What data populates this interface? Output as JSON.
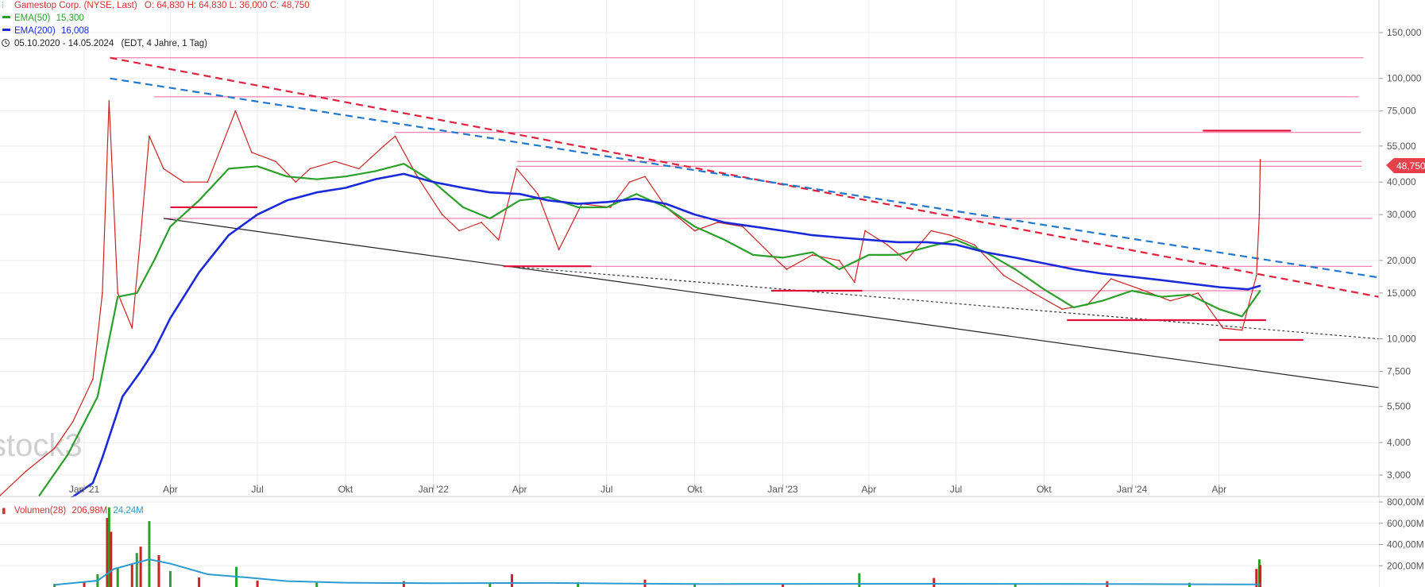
{
  "header": {
    "instrument": "Gamestop Corp. (NYSE, Last)",
    "ohlc": "O: 64,830  H: 64,830  L: 36,000  C: 48,750",
    "ema50_label": "EMA(50)",
    "ema50_value": "15,300",
    "ema200_label": "EMA(200)",
    "ema200_value": "16,008",
    "range": "05.10.2020 - 14.05.2024",
    "range_detail": "(EDT, 4 Jahre, 1 Tag)"
  },
  "watermark": "stock3",
  "last_price_tag": "48,750",
  "volume_panel": {
    "label": "Volumen(28)",
    "value1": "206,98M",
    "value2": "24,24M",
    "axis_labels": [
      "800,00M",
      "600,00M",
      "400,00M",
      "200,00M"
    ]
  },
  "colors": {
    "price": "#cc2222",
    "ema50": "#2aa02a",
    "ema200": "#1a2ad8",
    "resistance": "#e8337a",
    "trend_red": "#e0203c",
    "trend_blue": "#2277cc",
    "volume_up": "#2aa02a",
    "volume_down": "#cc2222",
    "volume_avg": "#2b9bd0"
  },
  "chart_data": {
    "type": "line",
    "scale": "log",
    "ylim": [
      2.5,
      200
    ],
    "xlim": [
      "2020-10-05",
      "2024-09-15"
    ],
    "y_ticks": [
      3,
      4,
      5.5,
      7.5,
      10,
      15,
      20,
      30,
      40,
      55,
      75,
      100,
      150
    ],
    "y_tick_labels": [
      "3,000",
      "4,000",
      "5,500",
      "7,500",
      "10,000",
      "15,000",
      "20,000",
      "30,000",
      "40,000",
      "55,000",
      "75,000",
      "100,000",
      "150,000"
    ],
    "x_ticks": [
      "2021-01-01",
      "2021-04-01",
      "2021-07-01",
      "2021-10-01",
      "2022-01-01",
      "2022-04-01",
      "2022-07-01",
      "2022-10-01",
      "2023-01-01",
      "2023-04-01",
      "2023-07-01",
      "2023-10-01",
      "2024-01-01",
      "2024-04-01"
    ],
    "x_tick_labels": [
      "Jan '21",
      "Apr",
      "Jul",
      "Okt",
      "Jan '22",
      "Apr",
      "Jul",
      "Okt",
      "Jan '23",
      "Apr",
      "Jul",
      "Okt",
      "Jan '24",
      "Apr"
    ],
    "series": [
      {
        "name": "Gamestop Corp.",
        "x": [
          "2020-10-05",
          "2020-11-01",
          "2020-12-01",
          "2020-12-20",
          "2021-01-10",
          "2021-01-20",
          "2021-01-27",
          "2021-02-05",
          "2021-02-20",
          "2021-03-01",
          "2021-03-10",
          "2021-03-25",
          "2021-04-15",
          "2021-05-10",
          "2021-06-08",
          "2021-06-25",
          "2021-07-20",
          "2021-08-10",
          "2021-08-25",
          "2021-09-20",
          "2021-10-15",
          "2021-11-10",
          "2021-11-22",
          "2021-12-15",
          "2022-01-10",
          "2022-01-28",
          "2022-02-20",
          "2022-03-10",
          "2022-03-29",
          "2022-04-20",
          "2022-05-12",
          "2022-06-05",
          "2022-07-05",
          "2022-07-25",
          "2022-08-10",
          "2022-09-01",
          "2022-10-01",
          "2022-10-25",
          "2022-11-20",
          "2022-12-20",
          "2023-01-05",
          "2023-02-01",
          "2023-03-01",
          "2023-03-17",
          "2023-03-28",
          "2023-04-20",
          "2023-05-10",
          "2023-06-05",
          "2023-06-25",
          "2023-07-20",
          "2023-08-20",
          "2023-09-20",
          "2023-10-20",
          "2023-11-15",
          "2023-12-10",
          "2024-01-10",
          "2024-02-10",
          "2024-03-10",
          "2024-04-05",
          "2024-04-25",
          "2024-05-10",
          "2024-05-13",
          "2024-05-14"
        ],
        "y": [
          2.5,
          3.1,
          3.8,
          4.8,
          7.0,
          15.0,
          82.0,
          15.0,
          11.0,
          25.0,
          60.0,
          45.0,
          40.0,
          40.0,
          75.0,
          52.0,
          48.0,
          40.0,
          45.0,
          48.0,
          45.0,
          55.0,
          60.0,
          42.0,
          30.0,
          26.0,
          28.0,
          24.0,
          45.0,
          36.0,
          22.0,
          33.0,
          32.0,
          40.0,
          42.0,
          32.0,
          26.0,
          28.0,
          27.0,
          21.0,
          18.5,
          21.0,
          20.0,
          16.5,
          26.0,
          23.0,
          20.0,
          26.0,
          25.0,
          23.0,
          17.5,
          15.0,
          13.0,
          13.5,
          17.0,
          15.5,
          14.0,
          15.0,
          11.0,
          10.8,
          17.5,
          30.0,
          48.75
        ]
      },
      {
        "name": "EMA(50)",
        "x": [
          "2020-11-15",
          "2020-12-15",
          "2021-01-15",
          "2021-02-05",
          "2021-02-25",
          "2021-03-15",
          "2021-04-01",
          "2021-05-01",
          "2021-06-01",
          "2021-07-01",
          "2021-08-01",
          "2021-09-01",
          "2021-10-01",
          "2021-11-01",
          "2021-12-01",
          "2022-01-01",
          "2022-02-01",
          "2022-03-01",
          "2022-04-01",
          "2022-05-01",
          "2022-06-01",
          "2022-07-01",
          "2022-08-01",
          "2022-09-01",
          "2022-10-01",
          "2022-11-01",
          "2022-12-01",
          "2023-01-01",
          "2023-02-01",
          "2023-03-01",
          "2023-04-01",
          "2023-05-01",
          "2023-06-01",
          "2023-07-01",
          "2023-08-01",
          "2023-09-01",
          "2023-10-01",
          "2023-11-01",
          "2023-12-01",
          "2024-01-01",
          "2024-02-01",
          "2024-03-01",
          "2024-04-01",
          "2024-04-25",
          "2024-05-14"
        ],
        "y": [
          2.5,
          3.6,
          6.0,
          14.5,
          15.0,
          20.0,
          27.0,
          34.0,
          45.0,
          46.0,
          42.0,
          41.0,
          42.0,
          44.0,
          47.0,
          40.0,
          32.0,
          29.0,
          34.0,
          35.0,
          32.0,
          32.0,
          36.0,
          32.0,
          27.0,
          24.0,
          21.0,
          20.5,
          21.5,
          18.5,
          21.0,
          21.0,
          22.5,
          24.0,
          21.5,
          18.5,
          15.5,
          13.2,
          14.0,
          15.3,
          14.5,
          14.8,
          13.0,
          12.2,
          15.3
        ]
      },
      {
        "name": "EMA(200)",
        "x": [
          "2020-12-15",
          "2021-01-10",
          "2021-01-20",
          "2021-02-10",
          "2021-03-01",
          "2021-03-15",
          "2021-04-01",
          "2021-05-01",
          "2021-06-01",
          "2021-07-01",
          "2021-08-01",
          "2021-09-01",
          "2021-10-01",
          "2021-11-01",
          "2021-12-01",
          "2022-01-01",
          "2022-02-01",
          "2022-03-01",
          "2022-04-01",
          "2022-05-01",
          "2022-06-01",
          "2022-07-01",
          "2022-08-01",
          "2022-09-01",
          "2022-10-01",
          "2022-11-01",
          "2022-12-01",
          "2023-01-01",
          "2023-02-01",
          "2023-03-01",
          "2023-04-01",
          "2023-05-01",
          "2023-06-01",
          "2023-07-01",
          "2023-08-01",
          "2023-09-01",
          "2023-10-01",
          "2023-11-01",
          "2023-12-01",
          "2024-01-01",
          "2024-02-01",
          "2024-03-01",
          "2024-04-01",
          "2024-05-01",
          "2024-05-14"
        ],
        "y": [
          2.4,
          2.8,
          3.5,
          6.0,
          7.5,
          9.0,
          12.0,
          18.0,
          25.0,
          30.0,
          34.0,
          36.5,
          38.0,
          41.0,
          43.0,
          40.0,
          38.0,
          36.5,
          36.0,
          34.0,
          33.0,
          33.5,
          34.5,
          33.0,
          30.0,
          28.0,
          27.0,
          26.0,
          25.0,
          24.5,
          24.0,
          23.5,
          23.5,
          23.0,
          21.5,
          20.5,
          19.5,
          18.5,
          17.8,
          17.3,
          16.8,
          16.3,
          15.8,
          15.5,
          16.0
        ]
      }
    ],
    "volume": {
      "x": [
        "2020-12-01",
        "2021-01-01",
        "2021-01-15",
        "2021-01-25",
        "2021-01-27",
        "2021-01-29",
        "2021-02-05",
        "2021-02-20",
        "2021-02-25",
        "2021-03-01",
        "2021-03-10",
        "2021-03-20",
        "2021-04-01",
        "2021-05-01",
        "2021-06-09",
        "2021-07-01",
        "2021-09-01",
        "2021-12-01",
        "2022-03-01",
        "2022-03-24",
        "2022-06-01",
        "2022-08-10",
        "2022-10-01",
        "2023-01-01",
        "2023-03-22",
        "2023-06-08",
        "2023-09-01",
        "2023-12-06",
        "2024-03-01",
        "2024-05-10",
        "2024-05-13",
        "2024-05-14"
      ],
      "values": [
        30,
        45,
        120,
        650,
        750,
        520,
        180,
        210,
        320,
        380,
        620,
        300,
        150,
        90,
        190,
        60,
        40,
        55,
        40,
        120,
        45,
        70,
        35,
        30,
        130,
        85,
        35,
        55,
        40,
        170,
        260,
        206.98
      ],
      "avg_x": [
        "2020-12-01",
        "2021-01-15",
        "2021-02-01",
        "2021-03-10",
        "2021-04-01",
        "2021-05-10",
        "2021-06-20",
        "2021-08-01",
        "2021-10-01",
        "2022-01-01",
        "2022-05-01",
        "2022-10-01",
        "2023-06-01",
        "2024-01-01",
        "2024-05-14"
      ],
      "avg_values": [
        20,
        60,
        170,
        260,
        220,
        120,
        90,
        55,
        40,
        35,
        38,
        28,
        30,
        28,
        24.24
      ],
      "ylim": [
        0,
        800
      ]
    },
    "annotations": {
      "horizontal_lines": [
        {
          "y": 120,
          "from": "2021-01-28",
          "to": "2024-08-30"
        },
        {
          "y": 85,
          "from": "2021-03-15",
          "to": "2024-08-25"
        },
        {
          "y": 62,
          "from": "2021-11-22",
          "to": "2024-08-27"
        },
        {
          "y": 48,
          "from": "2022-03-29",
          "to": "2024-08-28"
        },
        {
          "y": 46,
          "from": "2022-03-29",
          "to": "2024-08-28"
        },
        {
          "y": 29,
          "from": "2021-03-25",
          "to": "2024-09-08"
        },
        {
          "y": 19,
          "from": "2022-03-15",
          "to": "2024-09-08"
        },
        {
          "y": 15.3,
          "from": "2022-12-20",
          "to": "2024-05-14"
        }
      ],
      "support_segments": [
        {
          "y": 32,
          "from": "2021-04-01",
          "to": "2021-07-01"
        },
        {
          "y": 19,
          "from": "2022-03-15",
          "to": "2022-06-15"
        },
        {
          "y": 15.3,
          "from": "2022-12-20",
          "to": "2023-03-25"
        },
        {
          "y": 11.8,
          "from": "2023-10-25",
          "to": "2024-05-20"
        },
        {
          "y": 9.9,
          "from": "2024-04-01",
          "to": "2024-06-28"
        },
        {
          "y": 63,
          "from": "2024-03-15",
          "to": "2024-06-15"
        }
      ],
      "trend_lines": [
        {
          "style": "red-dashed",
          "x": [
            "2021-01-28",
            "2024-09-15"
          ],
          "y": [
            120,
            14.5
          ]
        },
        {
          "style": "blue-dashed",
          "x": [
            "2021-01-28",
            "2024-09-15"
          ],
          "y": [
            100,
            17.2
          ]
        },
        {
          "style": "black-solid",
          "x": [
            "2021-03-25",
            "2024-09-15"
          ],
          "y": [
            29,
            6.5
          ]
        },
        {
          "style": "black-dotted",
          "x": [
            "2022-03-20",
            "2024-09-15"
          ],
          "y": [
            19,
            10.0
          ]
        }
      ]
    }
  }
}
